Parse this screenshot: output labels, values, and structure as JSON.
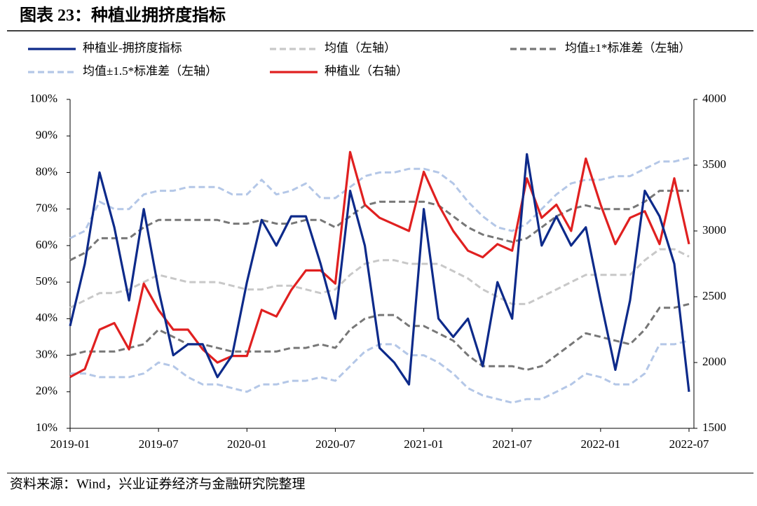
{
  "chart_data": {
    "type": "line",
    "title": "图表 23：种植业拥挤度指标",
    "source": "资料来源：Wind，兴业证券经济与金融研究院整理",
    "categories": [
      "2019-01",
      null,
      null,
      null,
      null,
      null,
      "2019-07",
      null,
      null,
      null,
      null,
      null,
      "2020-01",
      null,
      null,
      null,
      null,
      null,
      "2020-07",
      null,
      null,
      null,
      null,
      null,
      "2021-01",
      null,
      null,
      null,
      null,
      null,
      "2021-07",
      null,
      null,
      null,
      null,
      null,
      "2022-01",
      null,
      null,
      null,
      null,
      null,
      "2022-07"
    ],
    "ylim": [
      10,
      100
    ],
    "yticks": [
      {
        "value": 10,
        "label": "10%"
      },
      {
        "value": 20,
        "label": "20%"
      },
      {
        "value": 30,
        "label": "30%"
      },
      {
        "value": 40,
        "label": "40%"
      },
      {
        "value": 50,
        "label": "50%"
      },
      {
        "value": 60,
        "label": "60%"
      },
      {
        "value": 70,
        "label": "70%"
      },
      {
        "value": 80,
        "label": "80%"
      },
      {
        "value": 90,
        "label": "90%"
      },
      {
        "value": 100,
        "label": "100%"
      }
    ],
    "y2lim": [
      1500,
      4000
    ],
    "y2ticks": [
      1500,
      2000,
      2500,
      3000,
      3500,
      4000
    ],
    "series": [
      {
        "name": "种植业-拥挤度指标",
        "color": "#0d2a8a",
        "dash": false,
        "values": [
          38,
          55,
          80,
          65,
          45,
          70,
          48,
          30,
          33,
          33,
          24,
          30,
          50,
          67,
          60,
          68,
          68,
          55,
          40,
          75,
          60,
          32,
          28,
          22,
          70,
          40,
          35,
          40,
          27,
          50,
          40,
          85,
          60,
          68,
          60,
          65,
          45,
          26,
          45,
          75,
          68,
          55,
          20
        ]
      },
      {
        "name": "均值（左轴）",
        "color": "#c8c8c8",
        "dash": true,
        "values": [
          43,
          45,
          47,
          47,
          48,
          50,
          52,
          51,
          50,
          50,
          50,
          49,
          48,
          48,
          49,
          49,
          48,
          47,
          48,
          52,
          55,
          56,
          56,
          55,
          55,
          55,
          53,
          51,
          48,
          46,
          44,
          44,
          46,
          48,
          50,
          52,
          52,
          52,
          52,
          56,
          59,
          59,
          57
        ]
      },
      {
        "name": "均值±1*标准差（左轴）",
        "color": "#777777",
        "dash": true,
        "upper": [
          56,
          58,
          62,
          62,
          62,
          65,
          67,
          67,
          67,
          67,
          67,
          66,
          66,
          67,
          66,
          66,
          67,
          67,
          65,
          68,
          71,
          72,
          72,
          72,
          72,
          71,
          68,
          65,
          63,
          62,
          61,
          62,
          65,
          68,
          70,
          71,
          70,
          70,
          70,
          72,
          75,
          75,
          75
        ],
        "lower": [
          30,
          31,
          31,
          31,
          32,
          33,
          37,
          35,
          33,
          33,
          32,
          31,
          31,
          31,
          31,
          32,
          32,
          33,
          32,
          37,
          40,
          41,
          41,
          38,
          38,
          36,
          34,
          30,
          27,
          27,
          27,
          26,
          27,
          30,
          33,
          36,
          35,
          34,
          33,
          37,
          43,
          43,
          44
        ]
      },
      {
        "name": "均值±1.5*标准差（左轴）",
        "color": "#b4c7e7",
        "dash": true,
        "upper": [
          62,
          64,
          72,
          70,
          70,
          74,
          75,
          75,
          76,
          76,
          76,
          74,
          74,
          78,
          74,
          75,
          77,
          73,
          73,
          76,
          79,
          80,
          80,
          81,
          81,
          80,
          77,
          72,
          68,
          65,
          64,
          66,
          70,
          74,
          77,
          78,
          78,
          79,
          79,
          81,
          83,
          83,
          84
        ],
        "lower": [
          25,
          25,
          24,
          24,
          24,
          25,
          28,
          27,
          24,
          22,
          22,
          21,
          20,
          22,
          22,
          23,
          23,
          24,
          23,
          27,
          31,
          33,
          33,
          30,
          30,
          28,
          25,
          21,
          19,
          18,
          17,
          18,
          18,
          20,
          22,
          25,
          24,
          22,
          22,
          25,
          33,
          33,
          34
        ]
      },
      {
        "name": "种植业（右轴）",
        "color": "#e02020",
        "dash": false,
        "axis": "y2",
        "values": [
          1890,
          1950,
          2250,
          2300,
          2100,
          2600,
          2400,
          2250,
          2250,
          2100,
          2000,
          2050,
          2050,
          2400,
          2350,
          2550,
          2700,
          2700,
          2600,
          3600,
          3200,
          3100,
          3050,
          3000,
          3450,
          3200,
          3000,
          2850,
          2800,
          2900,
          2850,
          3400,
          3100,
          3200,
          3000,
          3550,
          3200,
          2900,
          3100,
          3150,
          2900,
          3400,
          2900
        ]
      }
    ]
  }
}
